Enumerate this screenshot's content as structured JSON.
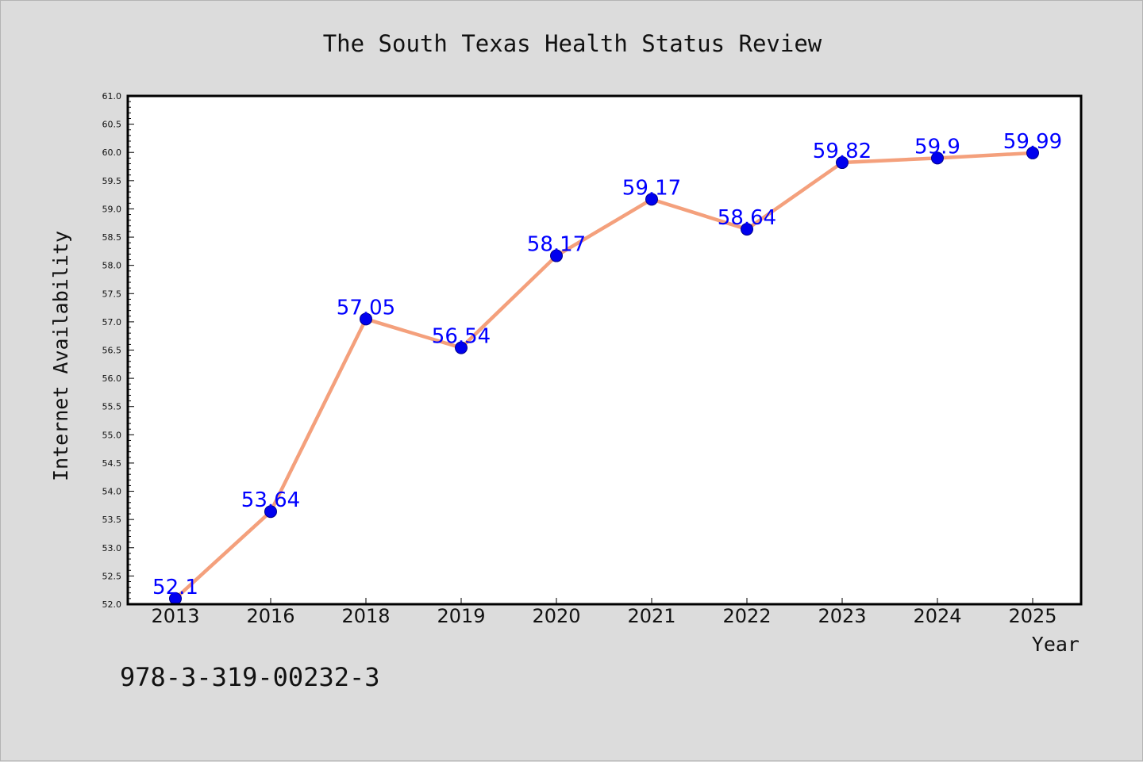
{
  "chart_data": {
    "type": "line",
    "title": "The South Texas Health Status Review",
    "xlabel": "Year",
    "ylabel": "Internet Availability",
    "categories": [
      "2013",
      "2016",
      "2018",
      "2019",
      "2020",
      "2021",
      "2022",
      "2023",
      "2024",
      "2025"
    ],
    "series": [
      {
        "values": [
          52.1,
          53.64,
          57.05,
          56.54,
          58.17,
          59.17,
          58.64,
          59.82,
          59.9,
          59.99
        ],
        "labels": [
          "52.1",
          "53.64",
          "57.05",
          "56.54",
          "58.17",
          "59.17",
          "58.64",
          "59.82",
          "59.9",
          "59.99"
        ],
        "line_color": "#f4a07c",
        "marker_color": "#0000ee"
      }
    ],
    "ylim": [
      52.0,
      61.0
    ],
    "yticks": [
      "52.0",
      "52.5",
      "53.0",
      "53.5",
      "54.0",
      "54.5",
      "55.0",
      "55.5",
      "56.0",
      "56.5",
      "57.0",
      "57.5",
      "58.0",
      "58.5",
      "59.0",
      "59.5",
      "60.0",
      "60.5",
      "61.0"
    ],
    "grid": false,
    "legend": "none"
  },
  "footer": {
    "isbn": "978-3-319-00232-3"
  },
  "colors": {
    "background": "#dcdcdc",
    "plot_background": "#ffffff",
    "line": "#f4a07c",
    "marker": "#0000ee",
    "data_label": "#0000ff"
  }
}
